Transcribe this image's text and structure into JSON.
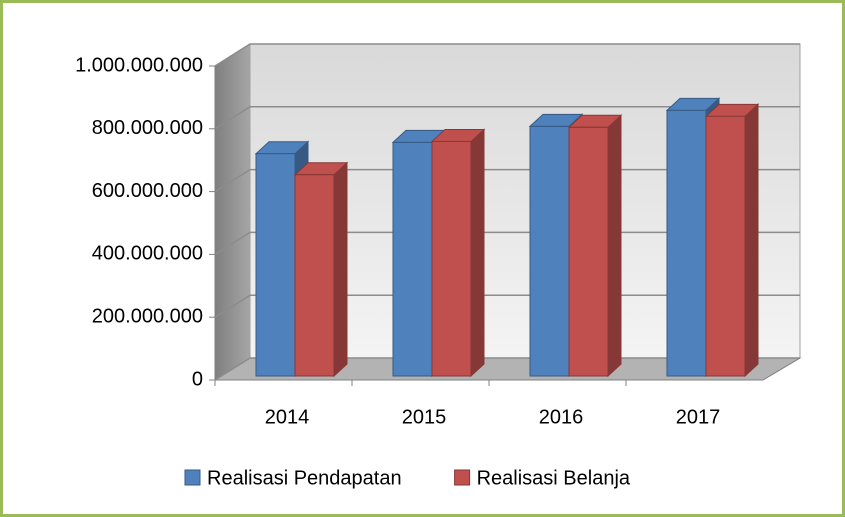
{
  "chart_data": {
    "type": "bar3d",
    "categories": [
      "2014",
      "2015",
      "2016",
      "2017"
    ],
    "series": [
      {
        "name": "Realisasi Pendapatan",
        "color": "#4f81bd",
        "values": [
          708000000,
          744000000,
          795000000,
          846000000
        ]
      },
      {
        "name": "Realisasi Belanja",
        "color": "#c0504d",
        "values": [
          641000000,
          747000000,
          792000000,
          827000000
        ]
      }
    ],
    "ylim": [
      0,
      1000000000
    ],
    "yticks": [
      {
        "value": 0,
        "label": "0"
      },
      {
        "value": 200000000,
        "label": "200.000.000"
      },
      {
        "value": 400000000,
        "label": "400.000.000"
      },
      {
        "value": 600000000,
        "label": "600.000.000"
      },
      {
        "value": 800000000,
        "label": "800.000.000"
      },
      {
        "value": 1000000000,
        "label": "1.000.000.000"
      }
    ],
    "grid": true,
    "legend": "bottom"
  }
}
